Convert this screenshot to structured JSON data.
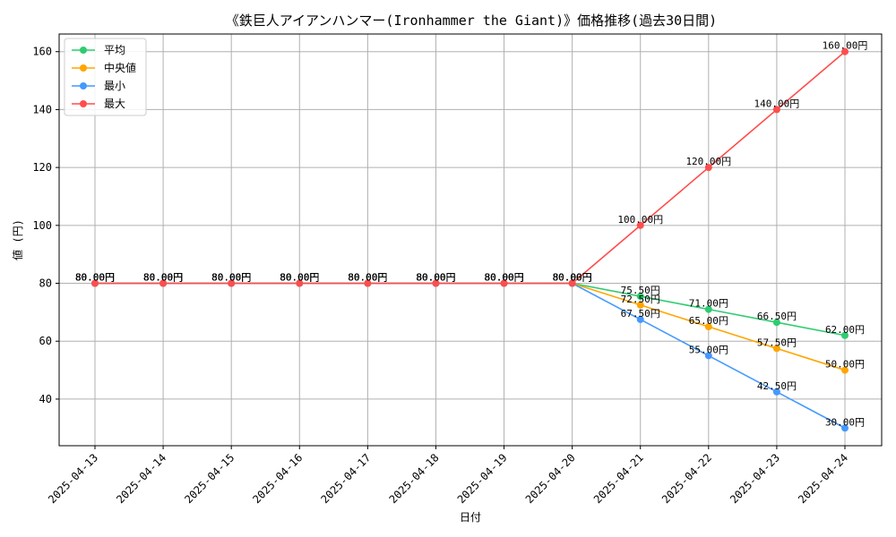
{
  "chart_data": {
    "type": "line",
    "title": "《鉄巨人アイアンハンマー(Ironhammer the Giant)》価格推移(過去30日間)",
    "xlabel": "日付",
    "ylabel": "値 (円)",
    "x": [
      "2025-04-13",
      "2025-04-14",
      "2025-04-15",
      "2025-04-16",
      "2025-04-17",
      "2025-04-18",
      "2025-04-19",
      "2025-04-20",
      "2025-04-21",
      "2025-04-22",
      "2025-04-23",
      "2025-04-24"
    ],
    "ylim": [
      23.9,
      166.1
    ],
    "yticks": [
      40,
      60,
      80,
      100,
      120,
      140,
      160
    ],
    "grid": true,
    "legend_position": "top-left",
    "value_suffix": "円",
    "series": [
      {
        "name": "平均",
        "color": "#2ecc71",
        "values": [
          80,
          80,
          80,
          80,
          80,
          80,
          80,
          80,
          75.5,
          71,
          66.5,
          62
        ]
      },
      {
        "name": "中央値",
        "color": "#ffa500",
        "values": [
          80,
          80,
          80,
          80,
          80,
          80,
          80,
          80,
          72.5,
          65,
          57.5,
          50
        ]
      },
      {
        "name": "最小",
        "color": "#4499ff",
        "values": [
          80,
          80,
          80,
          80,
          80,
          80,
          80,
          80,
          67.5,
          55,
          42.5,
          30
        ]
      },
      {
        "name": "最大",
        "color": "#ff4d4d",
        "values": [
          80,
          80,
          80,
          80,
          80,
          80,
          80,
          80,
          100,
          120,
          140,
          160
        ]
      }
    ]
  }
}
